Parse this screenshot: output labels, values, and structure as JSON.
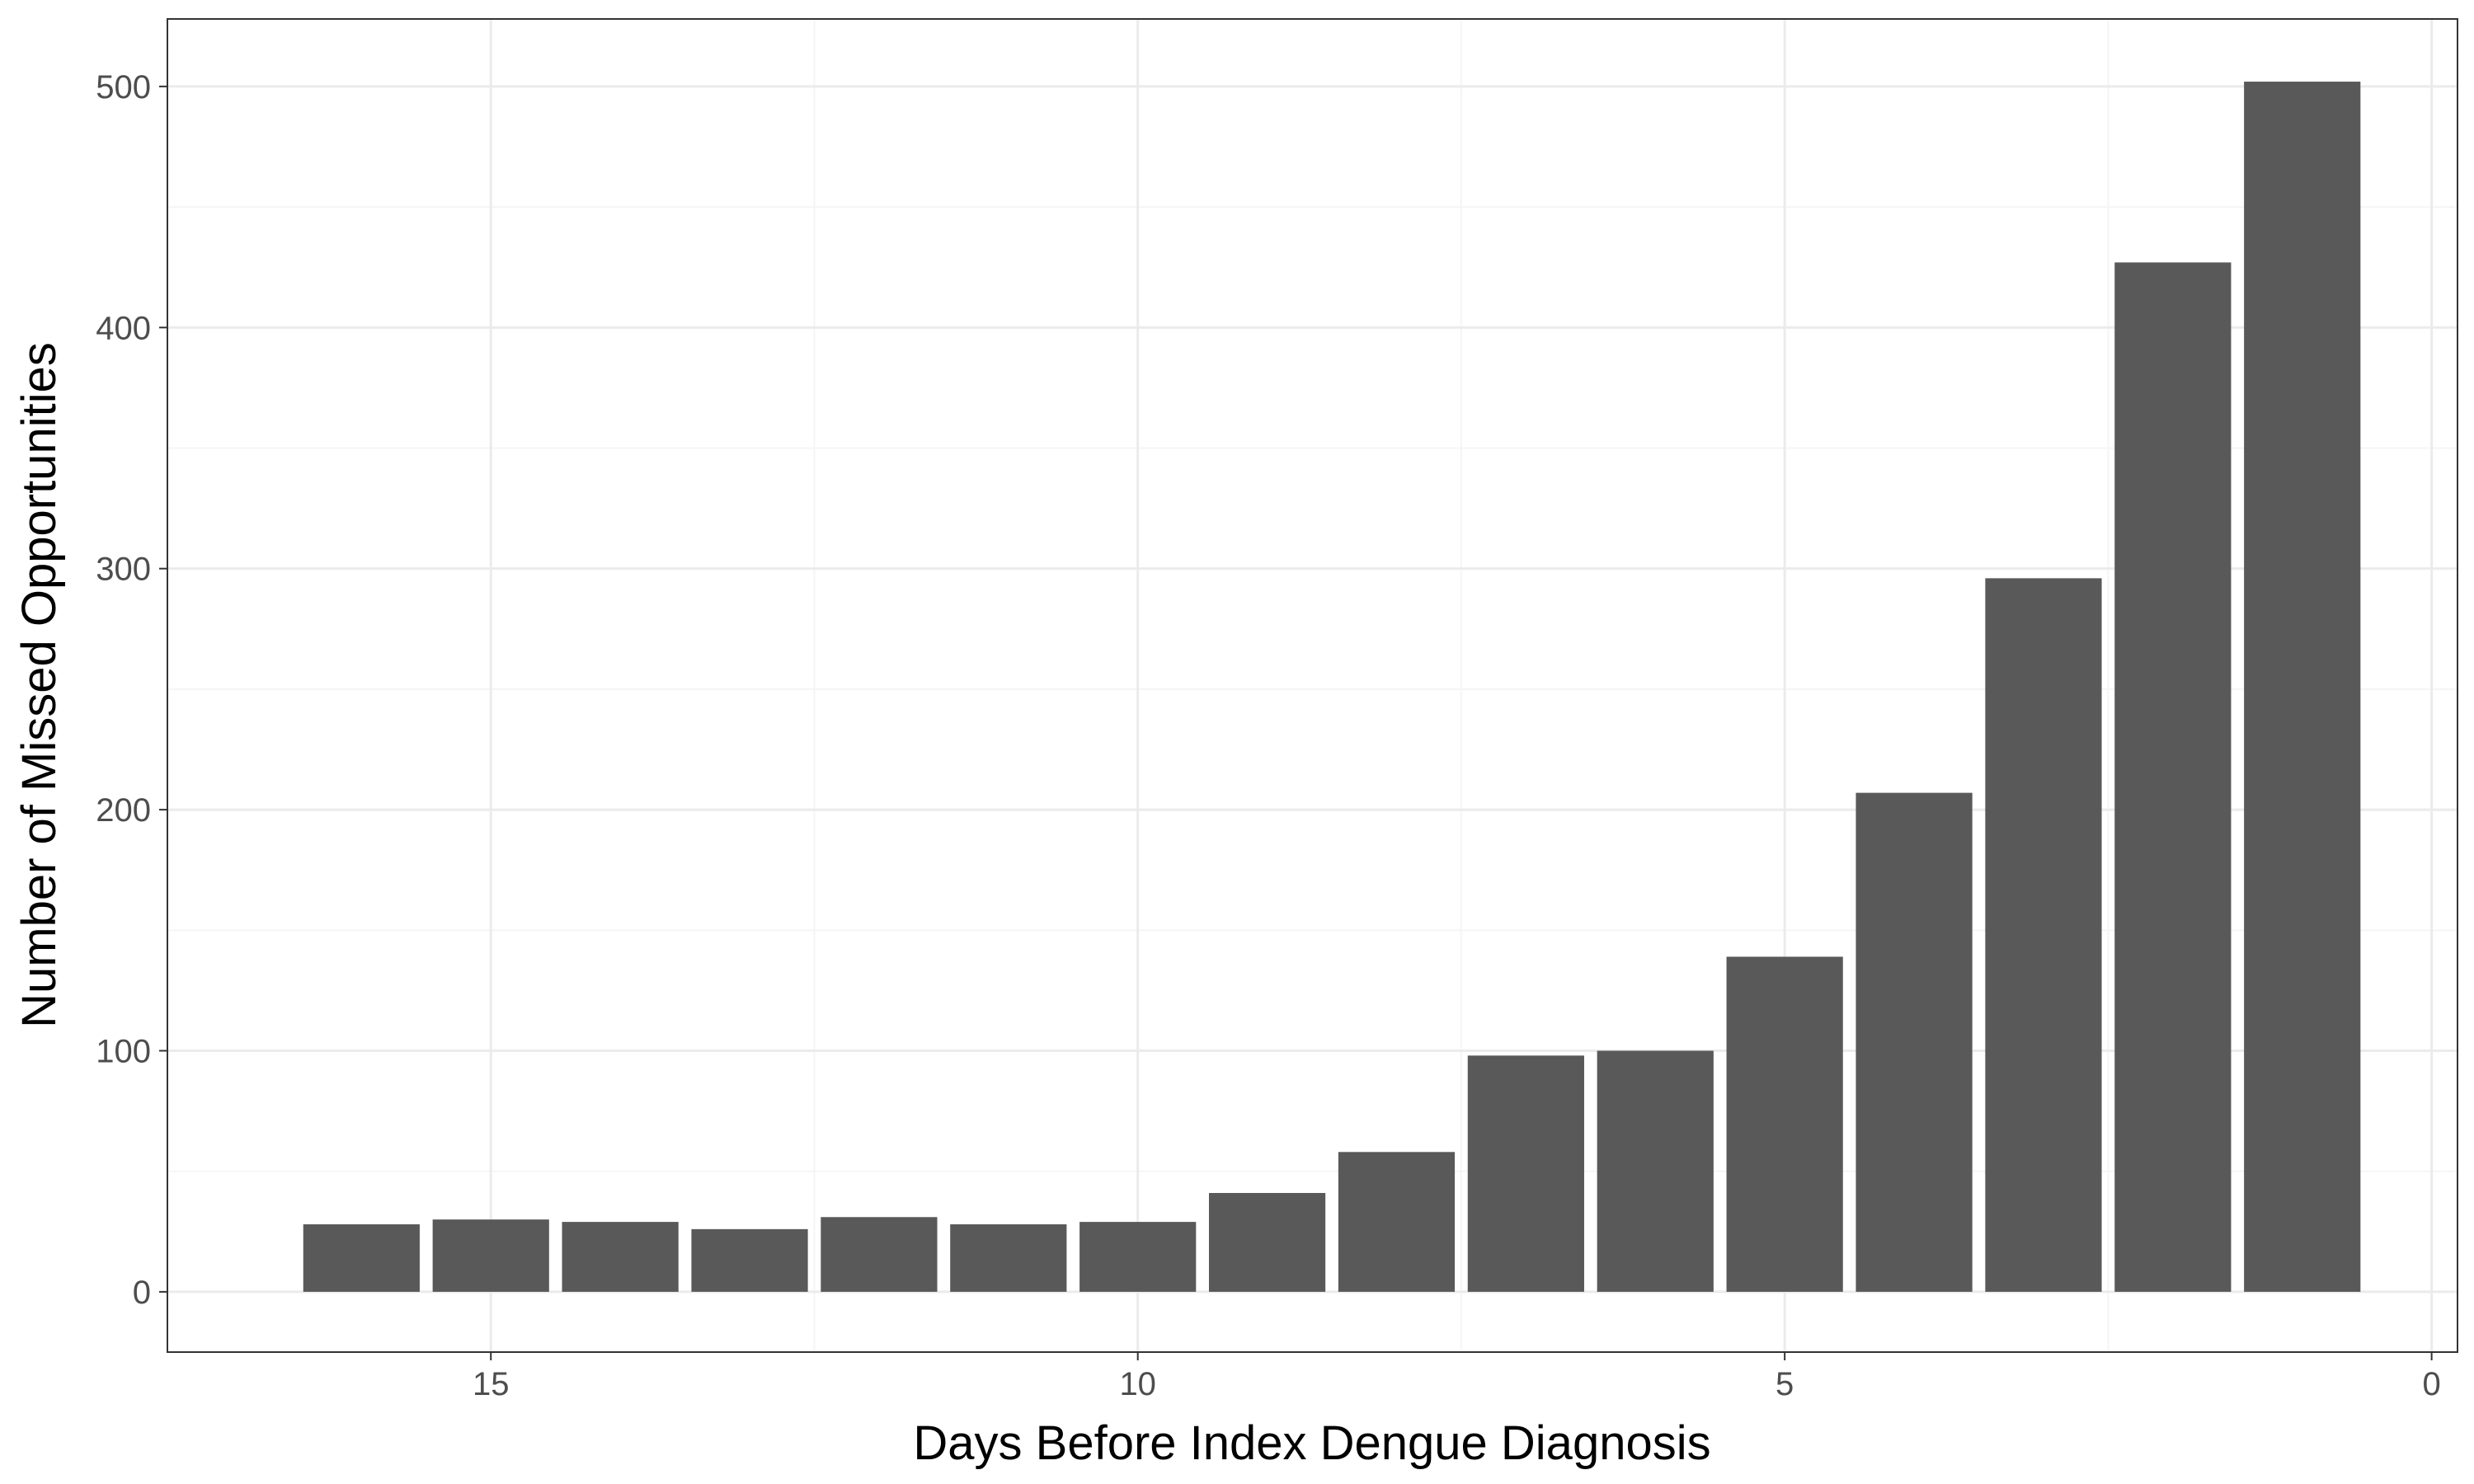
{
  "chart_data": {
    "type": "bar",
    "title": "",
    "xlabel": "Days Before Index Dengue Diagnosis",
    "ylabel": "Number of Missed Opportunities",
    "x": [
      16,
      15,
      14,
      13,
      12,
      11,
      10,
      9,
      8,
      7,
      6,
      5,
      4,
      3,
      2,
      1
    ],
    "values": [
      28,
      30,
      29,
      26,
      31,
      28,
      29,
      41,
      58,
      98,
      100,
      139,
      207,
      296,
      427,
      502
    ],
    "xlim": [
      17.5,
      -0.2
    ],
    "x_reversed": true,
    "ylim": [
      -25,
      528
    ],
    "x_ticks": [
      15,
      10,
      5,
      0
    ],
    "y_ticks": [
      0,
      100,
      200,
      300,
      400,
      500
    ],
    "grid": true,
    "legend": "none",
    "colors": {
      "bar": "#595959",
      "grid_major": "#ebebeb",
      "grid_minor": "#f5f5f5",
      "panel_border": "#333333",
      "tick_text": "#4d4d4d",
      "title_text": "#000000"
    }
  }
}
